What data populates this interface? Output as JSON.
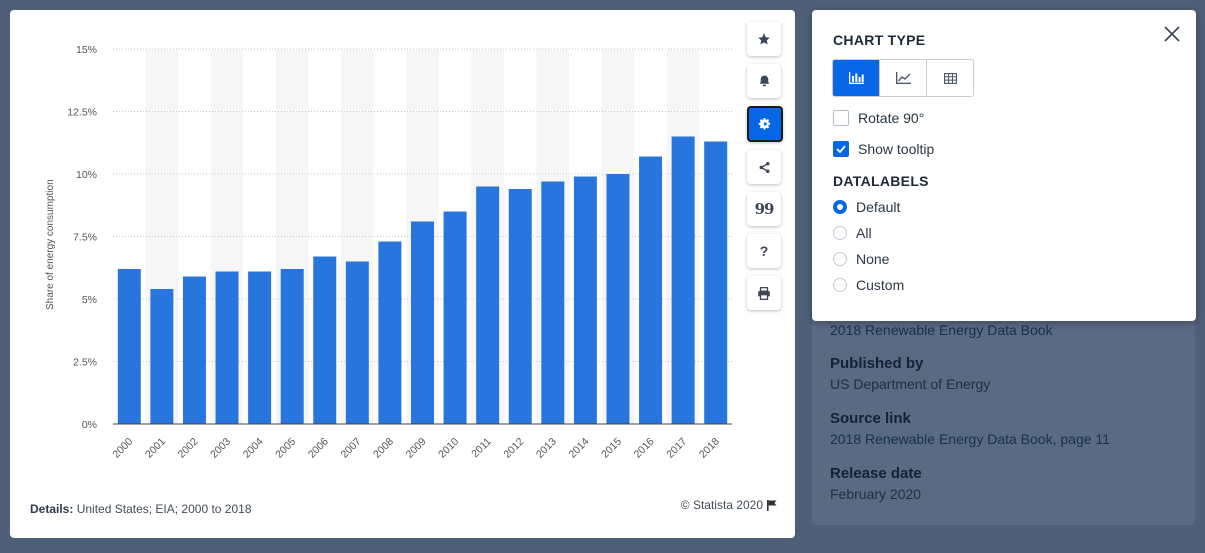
{
  "chart_data": {
    "type": "bar",
    "categories": [
      "2000",
      "2001",
      "2002",
      "2003",
      "2004",
      "2005",
      "2006",
      "2007",
      "2008",
      "2009",
      "2010",
      "2011",
      "2012",
      "2013",
      "2014",
      "2015",
      "2016",
      "2017",
      "2018"
    ],
    "values": [
      6.2,
      5.4,
      5.9,
      6.1,
      6.1,
      6.2,
      6.7,
      6.5,
      7.3,
      8.1,
      8.5,
      9.5,
      9.4,
      9.7,
      9.9,
      10.0,
      10.7,
      11.5,
      11.3
    ],
    "ylabel": "Share of energy consumption",
    "xlabel": "",
    "yticks": [
      "0%",
      "2.5%",
      "5%",
      "7.5%",
      "10%",
      "12.5%",
      "15%"
    ],
    "ylim": [
      0,
      15
    ],
    "color": "#2876dd",
    "grid": "horizontal dotted"
  },
  "details": {
    "label": "Details:",
    "text": "United States; EIA; 2000 to 2018"
  },
  "copyright": "© Statista 2020",
  "toolbar": {
    "icons": [
      "star-icon",
      "bell-icon",
      "gear-icon",
      "share-icon",
      "quote-icon",
      "help-icon",
      "print-icon"
    ],
    "help_label": "?",
    "quote_label": "99"
  },
  "info": {
    "source_title": "2018 Renewable Energy Data Book",
    "published_label": "Published by",
    "published_value": "US Department of Energy",
    "source_link_label": "Source link",
    "source_link_value": "2018 Renewable Energy Data Book, page 11",
    "release_label": "Release date",
    "release_value": "February 2020"
  },
  "popup": {
    "chart_type_title": "CHART TYPE",
    "rotate_label": "Rotate 90°",
    "tooltip_label": "Show tooltip",
    "datalabels_title": "DATALABELS",
    "datalabel_options": [
      "Default",
      "All",
      "None",
      "Custom"
    ],
    "accent": "#0666e5"
  }
}
